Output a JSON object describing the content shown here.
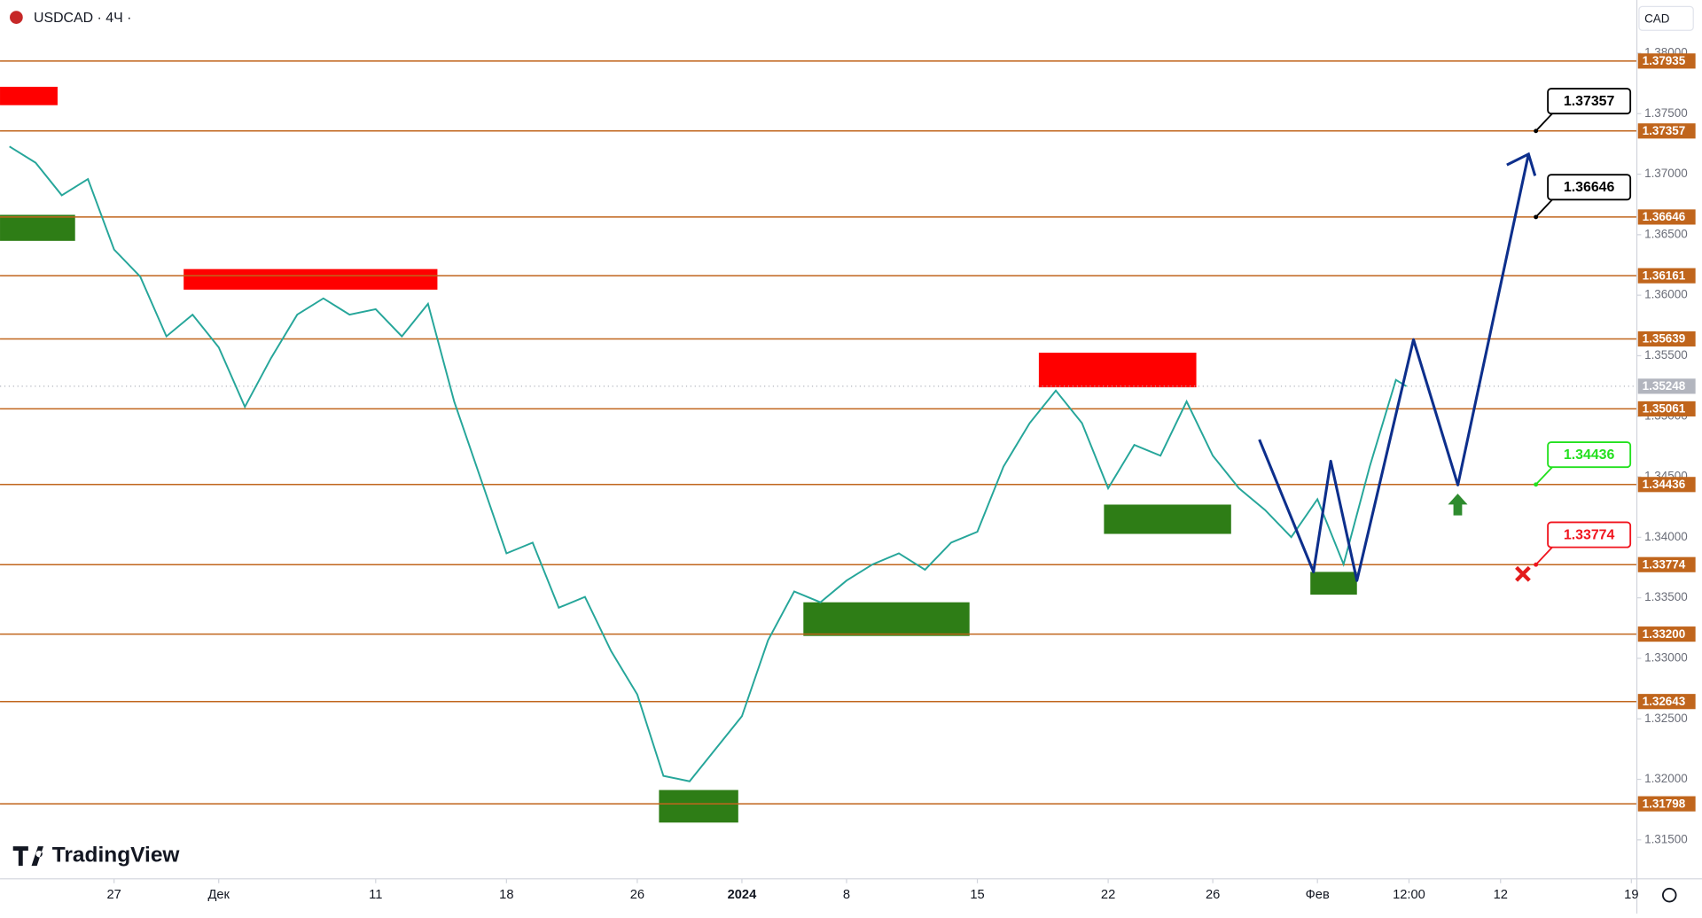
{
  "chart_data": {
    "type": "line",
    "title": "USDCAD · 4Ч ·",
    "currency": "CAD",
    "watermark": "TradingView",
    "xlim": [
      -4.36,
      58.21
    ],
    "ylim": [
      1.31178,
      1.38439
    ],
    "xticks": [
      {
        "value": 0,
        "label": "27"
      },
      {
        "value": 4,
        "label": "Дек"
      },
      {
        "value": 10,
        "label": "11"
      },
      {
        "value": 15,
        "label": "18"
      },
      {
        "value": 20,
        "label": "26"
      },
      {
        "value": 24,
        "label": "2024"
      },
      {
        "value": 28,
        "label": "8"
      },
      {
        "value": 33,
        "label": "15"
      },
      {
        "value": 38,
        "label": "22"
      },
      {
        "value": 42,
        "label": "26"
      },
      {
        "value": 46,
        "label": "Фев"
      },
      {
        "value": 49.5,
        "label": "12:00"
      },
      {
        "value": 53,
        "label": "12"
      },
      {
        "value": 58,
        "label": "19"
      }
    ],
    "yticks": [
      {
        "value": 1.38,
        "label": "1.38000"
      },
      {
        "value": 1.375,
        "label": "1.37500"
      },
      {
        "value": 1.37,
        "label": "1.37000"
      },
      {
        "value": 1.365,
        "label": "1.36500"
      },
      {
        "value": 1.36,
        "label": "1.36000"
      },
      {
        "value": 1.355,
        "label": "1.35500"
      },
      {
        "value": 1.35,
        "label": "1.35000"
      },
      {
        "value": 1.345,
        "label": "1.34500"
      },
      {
        "value": 1.34,
        "label": "1.34000"
      },
      {
        "value": 1.335,
        "label": "1.33500"
      },
      {
        "value": 1.33,
        "label": "1.33000"
      },
      {
        "value": 1.325,
        "label": "1.32500"
      },
      {
        "value": 1.32,
        "label": "1.32000"
      },
      {
        "value": 1.315,
        "label": "1.31500"
      }
    ],
    "x": [
      -4,
      -3,
      -2,
      -1,
      0,
      1,
      2,
      3,
      4,
      5,
      6,
      7,
      8,
      9,
      10,
      11,
      12,
      13,
      14,
      15,
      16,
      17,
      18,
      19,
      20,
      21,
      22,
      23,
      24,
      25,
      26,
      27,
      28,
      29,
      30,
      31,
      32,
      33,
      34,
      35,
      36,
      37,
      38,
      39,
      40,
      41,
      42,
      43,
      44,
      45,
      46,
      47,
      48,
      49,
      49.4
    ],
    "series": [
      {
        "name": "USDCAD",
        "color": "#26a69a",
        "values": [
          1.37229,
          1.37094,
          1.36825,
          1.3696,
          1.36377,
          1.36153,
          1.3566,
          1.35839,
          1.3557,
          1.35077,
          1.35481,
          1.35839,
          1.35974,
          1.35839,
          1.35884,
          1.3566,
          1.35929,
          1.35122,
          1.34494,
          1.33867,
          1.33956,
          1.33418,
          1.33508,
          1.3306,
          1.32701,
          1.32029,
          1.31984,
          1.32253,
          1.32522,
          1.33149,
          1.33553,
          1.33463,
          1.33642,
          1.33777,
          1.33867,
          1.33732,
          1.33956,
          1.34046,
          1.34584,
          1.34943,
          1.35212,
          1.34943,
          1.34405,
          1.34763,
          1.34674,
          1.35122,
          1.34674,
          1.34405,
          1.34225,
          1.34001,
          1.34315,
          1.33777,
          1.34584,
          1.35301,
          1.35248
        ]
      }
    ],
    "levels": [
      1.37935,
      1.37357,
      1.36646,
      1.36161,
      1.35639,
      1.35061,
      1.34436,
      1.33774,
      {
        "value": 1.332,
        "label": "1.33200"
      },
      1.32643,
      1.31798
    ],
    "level_color": "#c0651c",
    "last_price": 1.35248,
    "last_color": "#b2b5be",
    "zones": [
      {
        "color": "#ff0000",
        "x": [
          -4.36,
          -2.16
        ],
        "y": [
          1.37722,
          1.3757
        ]
      },
      {
        "color": "#2e7d16",
        "x": [
          -4.36,
          -1.49
        ],
        "y": [
          1.36664,
          1.36449
        ]
      },
      {
        "color": "#ff0000",
        "x": [
          2.66,
          12.36
        ],
        "y": [
          1.36216,
          1.36046
        ]
      },
      {
        "color": "#2e7d16",
        "x": [
          20.83,
          23.86
        ],
        "y": [
          1.31912,
          1.31643
        ]
      },
      {
        "color": "#2e7d16",
        "x": [
          26.35,
          32.7
        ],
        "y": [
          1.33463,
          1.33185
        ]
      },
      {
        "color": "#ff0000",
        "x": [
          35.35,
          41.37
        ],
        "y": [
          1.35525,
          1.35239
        ]
      },
      {
        "color": "#2e7d16",
        "x": [
          37.84,
          42.7
        ],
        "y": [
          1.3427,
          1.34028
        ]
      },
      {
        "color": "#2e7d16",
        "x": [
          45.73,
          47.51
        ],
        "y": [
          1.33714,
          1.33526
        ]
      }
    ],
    "projection": {
      "color": "#0d2f8c",
      "x": [
        43.78,
        45.85,
        46.51,
        47.51,
        49.67,
        51.37,
        54.07
      ],
      "y": [
        1.34808,
        1.33714,
        1.34629,
        1.33642,
        1.35633,
        1.34432,
        1.37166
      ]
    },
    "callouts": [
      {
        "value": 1.37357,
        "color": "#000000"
      },
      {
        "value": 1.36646,
        "color": "#000000"
      },
      {
        "value": 1.34436,
        "color": "#22e01e"
      },
      {
        "value": 1.33774,
        "color": "#f0141e"
      }
    ]
  }
}
